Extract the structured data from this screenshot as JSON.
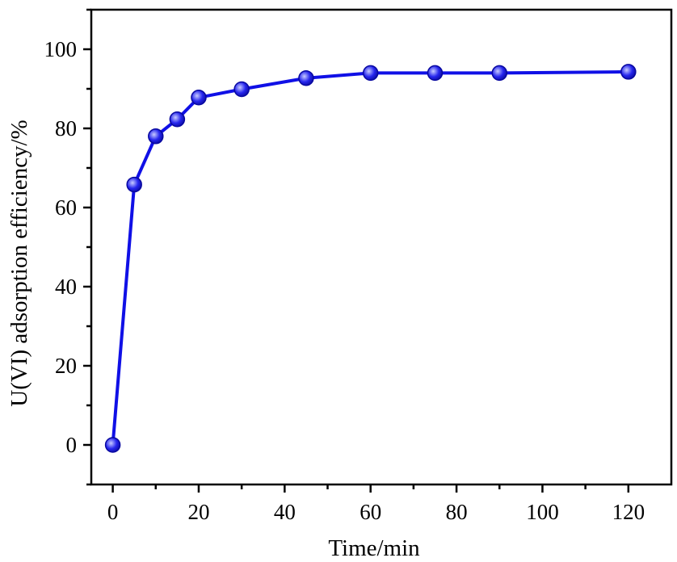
{
  "chart_data": {
    "type": "line",
    "title": "",
    "xlabel": "Time/min",
    "ylabel": "U(VI) adsorption efficiency/%",
    "xlim": [
      -5,
      130
    ],
    "ylim": [
      -10,
      110
    ],
    "x_ticks": [
      "0",
      "20",
      "40",
      "60",
      "80",
      "100",
      "120"
    ],
    "y_ticks": [
      "0",
      "20",
      "40",
      "60",
      "80",
      "100"
    ],
    "x_tick_values": [
      0,
      20,
      40,
      60,
      80,
      100,
      120
    ],
    "y_tick_values": [
      0,
      20,
      40,
      60,
      80,
      100
    ],
    "grid": false,
    "legend": "none",
    "series": [
      {
        "color": "#1010e6",
        "marker": "circle",
        "x": [
          0,
          5,
          10,
          15,
          20,
          30,
          45,
          60,
          75,
          90,
          120
        ],
        "y": [
          0,
          65.8,
          78,
          82.3,
          87.8,
          89.9,
          92.7,
          94.0,
          94.0,
          94.0,
          94.3
        ]
      }
    ]
  }
}
